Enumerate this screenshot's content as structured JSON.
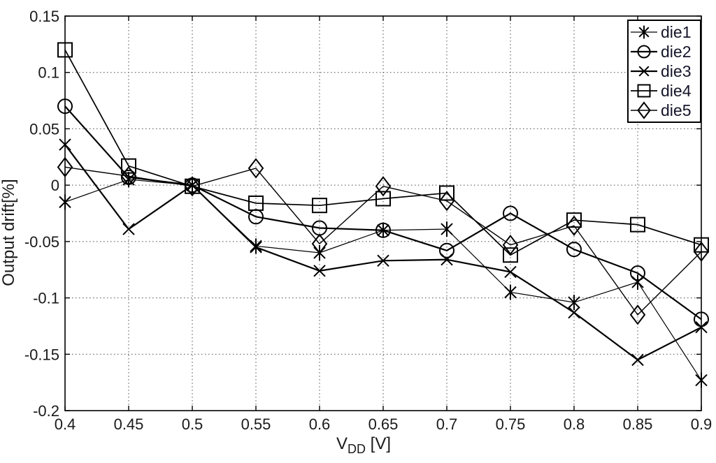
{
  "chart_data": {
    "type": "line",
    "x": [
      0.4,
      0.45,
      0.5,
      0.55,
      0.6,
      0.65,
      0.7,
      0.75,
      0.8,
      0.85,
      0.9
    ],
    "series": [
      {
        "name": "die1",
        "marker": "asterisk",
        "values": [
          -0.015,
          0.005,
          0.0,
          -0.054,
          -0.06,
          -0.04,
          -0.039,
          -0.095,
          -0.104,
          -0.086,
          -0.173
        ]
      },
      {
        "name": "die2",
        "marker": "circle",
        "values": [
          0.07,
          0.007,
          0.0,
          -0.028,
          -0.038,
          -0.04,
          -0.058,
          -0.025,
          -0.057,
          -0.078,
          -0.119
        ]
      },
      {
        "name": "die3",
        "marker": "x",
        "values": [
          0.036,
          -0.039,
          0.0,
          -0.055,
          -0.076,
          -0.067,
          -0.066,
          -0.077,
          -0.113,
          -0.155,
          -0.126
        ]
      },
      {
        "name": "die4",
        "marker": "square",
        "values": [
          0.12,
          0.017,
          -0.001,
          -0.016,
          -0.018,
          -0.012,
          -0.007,
          -0.062,
          -0.031,
          -0.035,
          -0.053
        ]
      },
      {
        "name": "die5",
        "marker": "diamond",
        "values": [
          0.016,
          0.008,
          -0.001,
          0.015,
          -0.052,
          -0.001,
          -0.014,
          -0.053,
          -0.036,
          -0.115,
          -0.059
        ]
      }
    ],
    "line_color": "#000000",
    "title": "",
    "xlabel": {
      "main": "V",
      "sub": "DD",
      "suffix": " [V]"
    },
    "ylabel": "Output drift[%]",
    "xlim": [
      0.4,
      0.9
    ],
    "ylim": [
      -0.2,
      0.15
    ],
    "x_ticks": [
      "0.4",
      "0.45",
      "0.5",
      "0.55",
      "0.6",
      "0.65",
      "0.7",
      "0.75",
      "0.8",
      "0.85",
      "0.9"
    ],
    "y_ticks": [
      "0.15",
      "0.1",
      "0.05",
      "0",
      "-0.05",
      "-0.1",
      "-0.15",
      "-0.2"
    ],
    "grid": true,
    "legend_position": "top-right",
    "legend_labels": [
      "die1",
      "die2",
      "die3",
      "die4",
      "die5"
    ]
  }
}
